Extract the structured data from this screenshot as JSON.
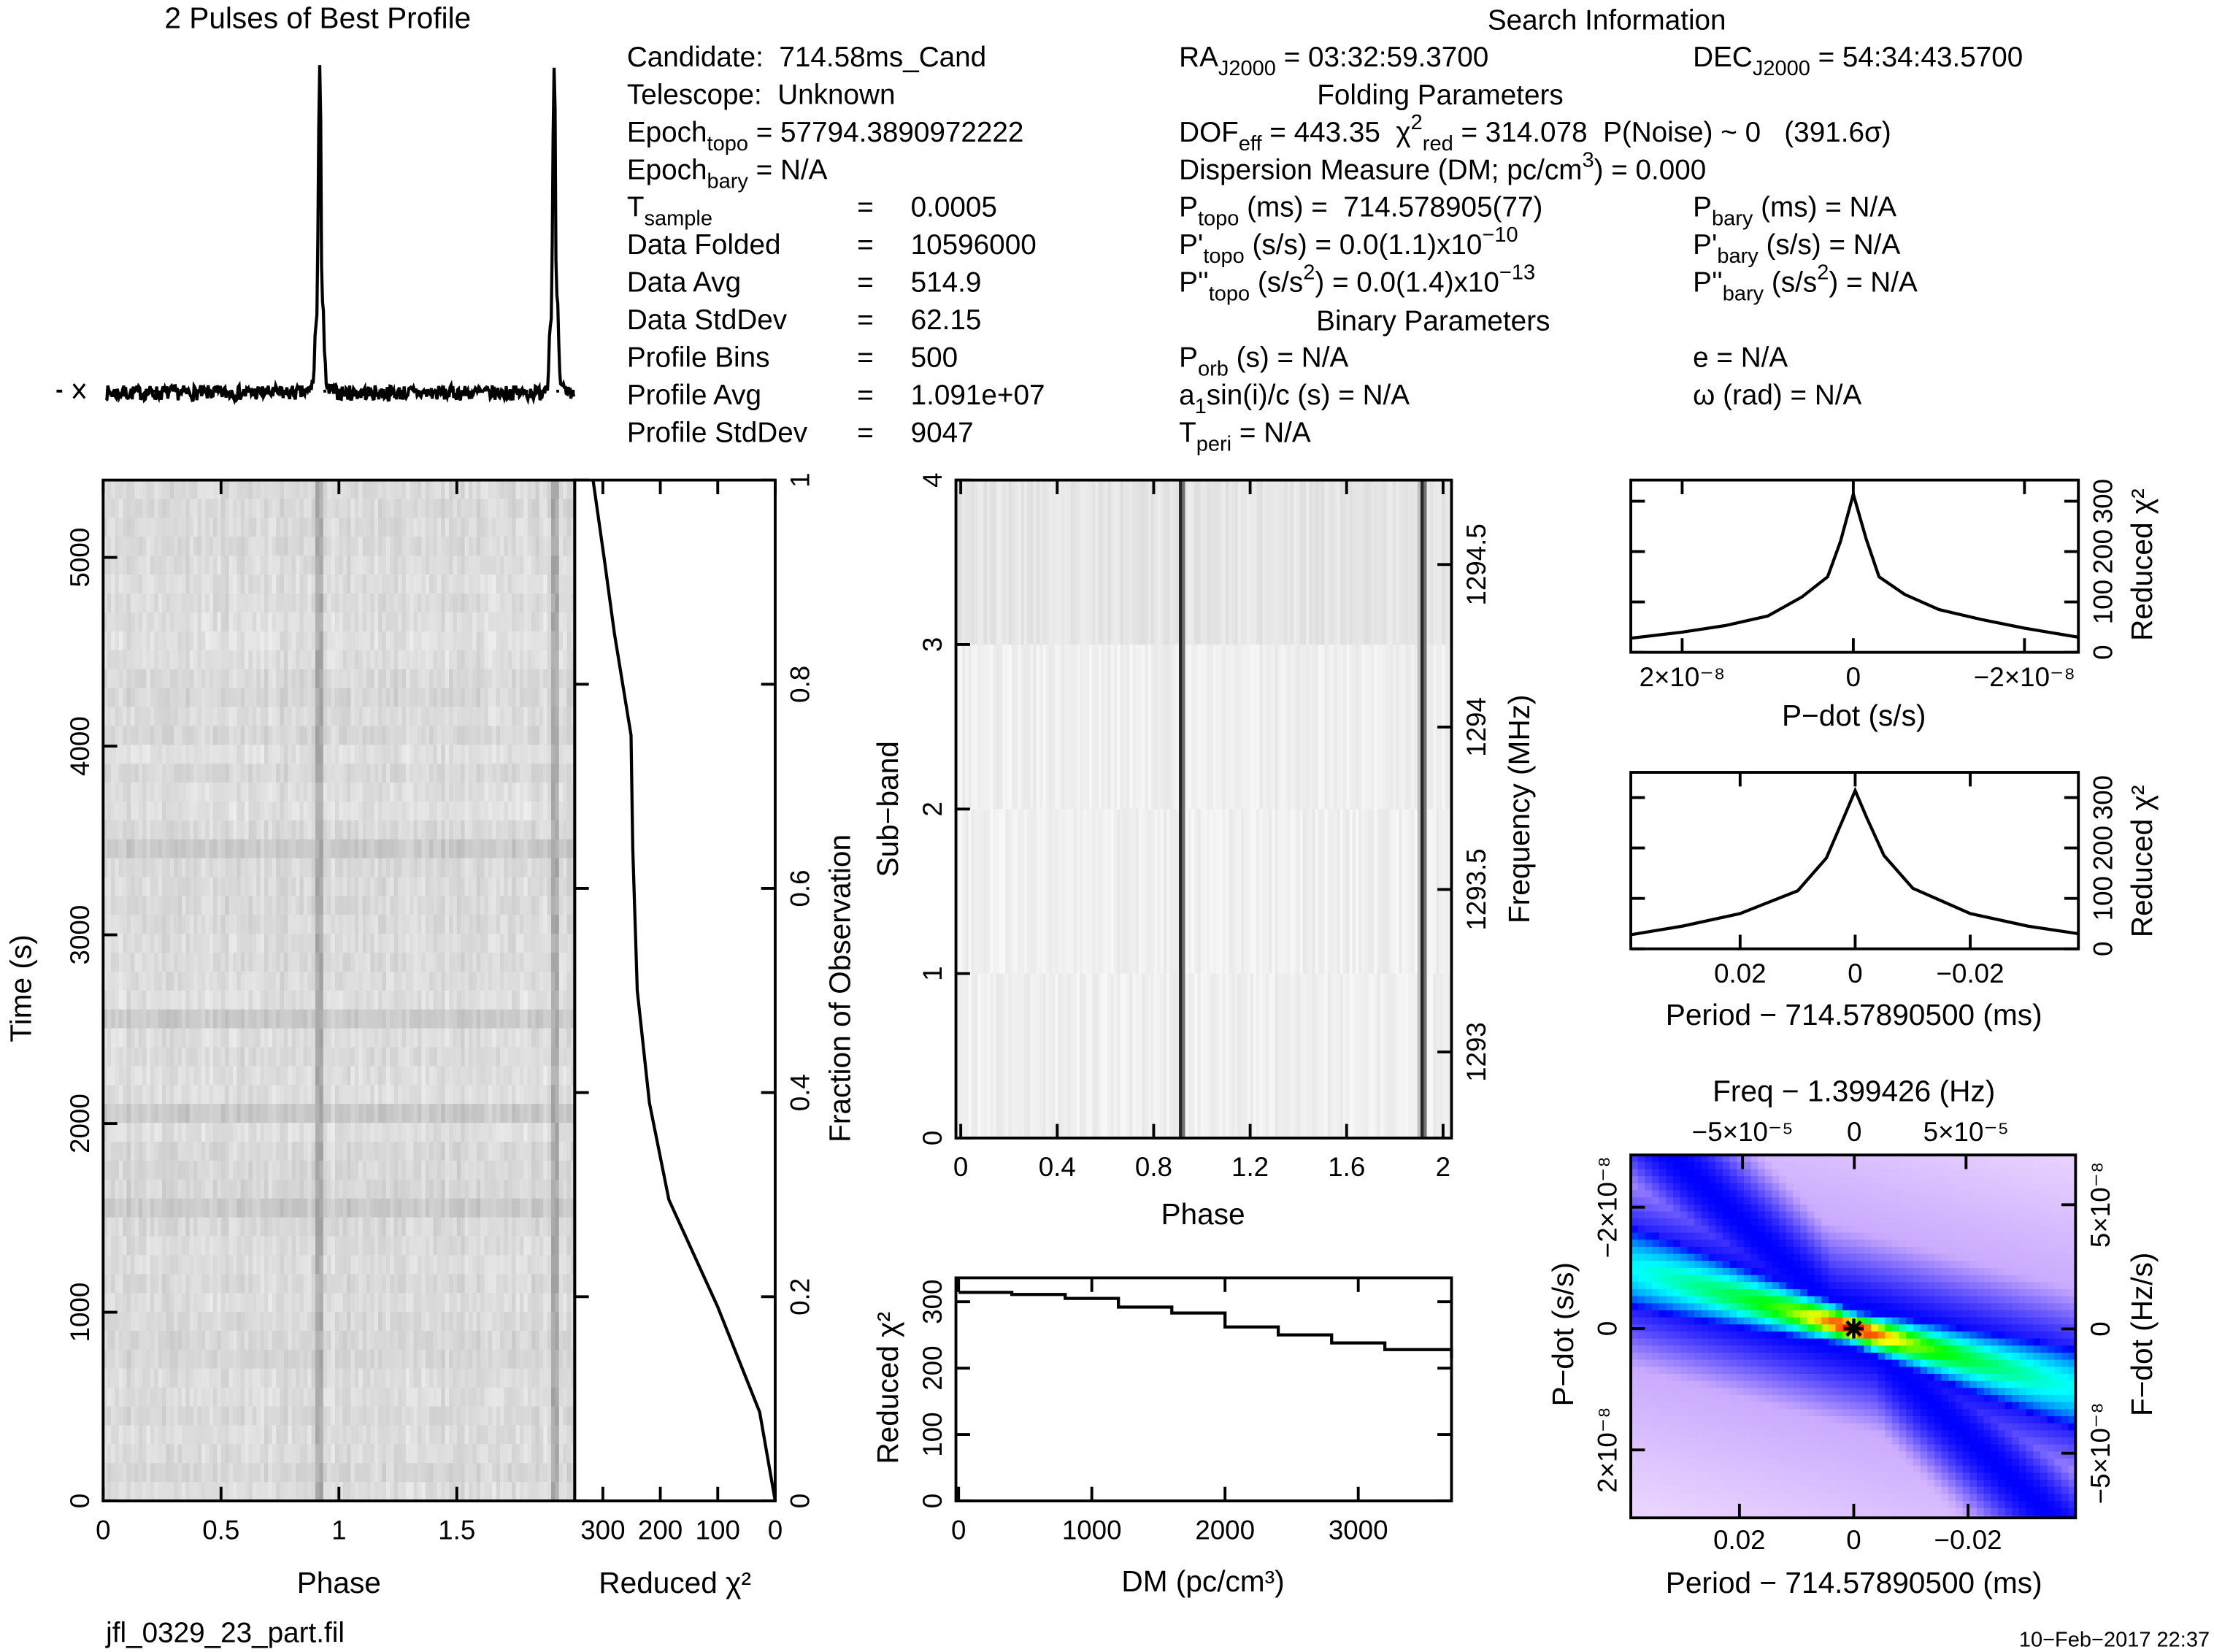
{
  "info": {
    "search_title": "Search Information",
    "folding_title": "Folding Parameters",
    "binary_title": "Binary Parameters",
    "equals": "=",
    "col1_top": [
      [
        [
          "Candidate:  714.58ms_Cand",
          "n"
        ]
      ],
      [
        [
          "Telescope:  Unknown",
          "n"
        ]
      ],
      [
        [
          "Epoch",
          "n"
        ],
        [
          "topo",
          "sub"
        ],
        [
          " = 57794.3890972222",
          "n"
        ]
      ],
      [
        [
          "Epoch",
          "n"
        ],
        [
          "bary",
          "sub"
        ],
        [
          " = N/A",
          "n"
        ]
      ]
    ],
    "col1_stats": [
      {
        "label": [
          [
            "T",
            "n"
          ],
          [
            "sample",
            "sub"
          ]
        ],
        "value": "0.0005"
      },
      {
        "label": [
          [
            "Data Folded",
            "n"
          ]
        ],
        "value": "10596000"
      },
      {
        "label": [
          [
            "Data Avg",
            "n"
          ]
        ],
        "value": "514.9"
      },
      {
        "label": [
          [
            "Data StdDev",
            "n"
          ]
        ],
        "value": "62.15"
      },
      {
        "label": [
          [
            "Profile Bins",
            "n"
          ]
        ],
        "value": "500"
      },
      {
        "label": [
          [
            "Profile Avg",
            "n"
          ]
        ],
        "value": "1.091e+07"
      },
      {
        "label": [
          [
            "Profile StdDev",
            "n"
          ]
        ],
        "value": "9047"
      }
    ],
    "col2": [
      [
        [
          "RA",
          "n"
        ],
        [
          "J2000",
          "sub"
        ],
        [
          " = 03:32:59.3700",
          "n"
        ]
      ],
      [],
      [
        [
          "DOF",
          "n"
        ],
        [
          "eff",
          "sub"
        ],
        [
          " = 443.35  χ",
          "n"
        ],
        [
          "2",
          "sup"
        ],
        [
          "red",
          "sub"
        ],
        [
          " = 314.078  P(Noise) ~ 0   (391.6σ)",
          "n"
        ]
      ],
      [
        [
          "Dispersion Measure (DM; pc/cm",
          "n"
        ],
        [
          "3",
          "sup"
        ],
        [
          ") = 0.000",
          "n"
        ]
      ],
      [
        [
          "P",
          "n"
        ],
        [
          "topo",
          "sub"
        ],
        [
          " (ms) =  714.578905(77)",
          "n"
        ]
      ],
      [
        [
          "P'",
          "n"
        ],
        [
          "topo",
          "sub"
        ],
        [
          " (s/s) = 0.0(1.1)x10",
          "n"
        ],
        [
          "−10",
          "sup"
        ]
      ],
      [
        [
          "P''",
          "n"
        ],
        [
          "topo",
          "sub"
        ],
        [
          " (s/s",
          "n"
        ],
        [
          "2",
          "sup"
        ],
        [
          ") = 0.0(1.4)x10",
          "n"
        ],
        [
          "−13",
          "sup"
        ]
      ],
      [],
      [
        [
          "P",
          "n"
        ],
        [
          "orb",
          "sub"
        ],
        [
          " (s) = N/A",
          "n"
        ]
      ],
      [
        [
          "a",
          "n"
        ],
        [
          "1",
          "sub"
        ],
        [
          "sin(i)/c (s) = N/A",
          "n"
        ]
      ],
      [
        [
          "T",
          "n"
        ],
        [
          "peri",
          "sub"
        ],
        [
          " = N/A",
          "n"
        ]
      ]
    ],
    "col3": [
      [
        [
          "DEC",
          "n"
        ],
        [
          "J2000",
          "sub"
        ],
        [
          " = 54:34:43.5700",
          "n"
        ]
      ],
      [],
      [],
      [],
      [
        [
          "P",
          "n"
        ],
        [
          "bary",
          "sub"
        ],
        [
          " (ms) = N/A",
          "n"
        ]
      ],
      [
        [
          "P'",
          "n"
        ],
        [
          "bary",
          "sub"
        ],
        [
          " (s/s) = N/A",
          "n"
        ]
      ],
      [
        [
          "P''",
          "n"
        ],
        [
          "bary",
          "sub"
        ],
        [
          " (s/s",
          "n"
        ],
        [
          "2",
          "sup"
        ],
        [
          ") = N/A",
          "n"
        ]
      ],
      [],
      [
        [
          "e = N/A",
          "n"
        ]
      ],
      [
        [
          "ω (rad) = N/A",
          "n"
        ]
      ],
      []
    ]
  },
  "footer": {
    "filename": "jfl_0329_23_part.fil",
    "date": "10−Feb−2017 22:37"
  },
  "chart_data": [
    {
      "id": "profile",
      "type": "line",
      "title": "2 Pulses of Best Profile",
      "xlim": [
        0,
        2
      ],
      "pulses": 2,
      "bins_per_pulse": 250,
      "pulse_phase": 0.916,
      "profile_shape": [
        [
          0,
          0.02
        ],
        [
          0.86,
          0.02
        ],
        [
          0.885,
          0.05
        ],
        [
          0.893,
          0.2
        ],
        [
          0.9,
          0.25
        ],
        [
          0.905,
          0.55
        ],
        [
          0.91,
          0.95
        ],
        [
          0.914,
          1.0
        ],
        [
          0.918,
          0.7
        ],
        [
          0.921,
          0.27
        ],
        [
          0.926,
          0.32
        ],
        [
          0.932,
          0.15
        ],
        [
          0.94,
          0.03
        ],
        [
          1,
          0.02
        ]
      ]
    },
    {
      "id": "time_vs_phase",
      "type": "heatmap",
      "colormap": "grayscale",
      "xlabel": "Phase",
      "ylabel": "Time (s)",
      "xlim": [
        0,
        2
      ],
      "ylim": [
        0,
        5410
      ],
      "x_ticks": [
        0,
        0.5,
        1,
        1.5
      ],
      "x_tick_labels": [
        "0",
        "0.5",
        "1",
        "1.5"
      ],
      "y_ticks": [
        0,
        1000,
        2000,
        3000,
        4000,
        5000
      ],
      "y_tick_labels": [
        "0",
        "1000",
        "2000",
        "3000",
        "4000",
        "5000"
      ],
      "pulse_phase": 0.916
    },
    {
      "id": "chi2_vs_time",
      "type": "line",
      "xlabel": "Reduced χ²",
      "ylabel_right": "Fraction of Observation",
      "xlim": [
        349,
        0
      ],
      "ylim": [
        0,
        1
      ],
      "x_ticks": [
        300,
        200,
        100,
        0
      ],
      "x_tick_labels": [
        "300",
        "200",
        "100",
        "0"
      ],
      "y2_ticks": [
        0,
        0.2,
        0.4,
        0.6,
        0.8,
        1
      ],
      "y2_tick_labels": [
        "0",
        "0.2",
        "0.4",
        "0.6",
        "0.8",
        "1"
      ],
      "fraction": [
        0,
        0.087,
        0.19,
        0.295,
        0.39,
        0.5,
        0.64,
        0.75,
        0.85,
        0.92,
        1
      ],
      "reduced_chi2": [
        0,
        27,
        100,
        185,
        219,
        240,
        248,
        251,
        280,
        297,
        317
      ]
    },
    {
      "id": "subbands",
      "type": "heatmap",
      "colormap": "grayscale",
      "xlabel": "Phase",
      "ylabel": "Sub−band",
      "ylabel_right": "Frequency (MHz)",
      "xlim": [
        -0.02,
        2.035
      ],
      "ylim": [
        0,
        4
      ],
      "y2lim": [
        1292.735,
        1294.76
      ],
      "x_ticks": [
        0,
        0.4,
        0.8,
        1.2,
        1.6,
        2
      ],
      "x_tick_labels": [
        "0",
        "0.4",
        "0.8",
        "1.2",
        "1.6",
        "2"
      ],
      "y_ticks": [
        0,
        1,
        2,
        3,
        4
      ],
      "y_tick_labels": [
        "0",
        "1",
        "2",
        "3",
        "4"
      ],
      "y2_ticks": [
        1293,
        1293.5,
        1294,
        1294.5
      ],
      "y2_tick_labels": [
        "1293",
        "1293.5",
        "1294",
        "1294.5"
      ],
      "pulse_phase": 0.916,
      "n_subbands": 4
    },
    {
      "id": "chi2_vs_dm",
      "type": "line",
      "xlabel": "DM (pc/cm³)",
      "ylabel": "Reduced χ²",
      "xlim": [
        -20,
        3700
      ],
      "ylim": [
        0,
        336
      ],
      "x_ticks": [
        0,
        1000,
        2000,
        3000
      ],
      "x_tick_labels": [
        "0",
        "1000",
        "2000",
        "3000"
      ],
      "y_ticks": [
        0,
        100,
        200,
        300
      ],
      "y_tick_labels": [
        "0",
        "100",
        "200",
        "300"
      ],
      "dm": [
        0,
        400,
        800,
        1200,
        1600,
        2000,
        2400,
        2800,
        3200,
        3700
      ],
      "reduced_chi2": [
        314,
        311,
        305,
        292,
        283,
        262,
        250,
        238,
        228,
        215
      ]
    },
    {
      "id": "chi2_vs_pdot",
      "type": "line",
      "xlabel": "P−dot (s/s)",
      "ylabel_right": "Reduced χ²",
      "xlim": [
        2.6e-08,
        -2.63e-08
      ],
      "ylim": [
        0,
        342
      ],
      "x_ticks": [
        2e-08,
        0,
        -2e-08
      ],
      "x_tick_labels": [
        "2×10⁻⁸",
        "0",
        "−2×10⁻⁸"
      ],
      "y2_ticks": [
        0,
        100,
        200,
        300
      ],
      "y2_tick_labels": [
        "0",
        "100",
        "200",
        "300"
      ],
      "pdot": [
        2.6e-08,
        2e-08,
        1.5e-08,
        1e-08,
        6e-09,
        3e-09,
        1.5e-09,
        0,
        -1.5e-09,
        -3e-09,
        -6e-09,
        -1e-08,
        -1.5e-08,
        -2e-08,
        -2.63e-08
      ],
      "reduced_chi2": [
        28,
        40,
        53,
        72,
        110,
        150,
        220,
        314,
        225,
        150,
        115,
        85,
        65,
        48,
        30
      ]
    },
    {
      "id": "chi2_vs_period",
      "type": "line",
      "xlabel": "Period − 714.57890500 (ms)",
      "ylabel_right": "Reduced χ²",
      "xlim": [
        0.039,
        -0.0388
      ],
      "ylim": [
        0,
        350
      ],
      "x_ticks": [
        0.02,
        0,
        -0.02
      ],
      "x_tick_labels": [
        "0.02",
        "0",
        "−0.02"
      ],
      "y2_ticks": [
        0,
        100,
        200,
        300
      ],
      "y2_tick_labels": [
        "0",
        "100",
        "200",
        "300"
      ],
      "period_offset": [
        0.039,
        0.03,
        0.02,
        0.01,
        0.005,
        0.002,
        0,
        -0.002,
        -0.005,
        -0.01,
        -0.02,
        -0.03,
        -0.0388
      ],
      "reduced_chi2": [
        28,
        45,
        70,
        115,
        180,
        260,
        314,
        260,
        185,
        120,
        70,
        45,
        30
      ]
    },
    {
      "id": "p_pdot_plane",
      "type": "heatmap",
      "xlabel": "Period − 714.57890500 (ms)",
      "ylabel": "P−dot (s/s)",
      "top_label": "Freq − 1.399426 (Hz)",
      "ylabel_right": "F−dot (Hz/s)",
      "xlim": [
        0.039,
        -0.0388
      ],
      "ylim": [
        -2.86e-08,
        3.12e-08
      ],
      "x2lim": [
        -0.0001,
        9.9e-05
      ],
      "y2lim": [
        7e-08,
        -7.6e-08
      ],
      "x_ticks": [
        0.02,
        0,
        -0.02
      ],
      "x_tick_labels": [
        "0.02",
        "0",
        "−0.02"
      ],
      "y_ticks": [
        -2e-08,
        0,
        2e-08
      ],
      "y_tick_labels": [
        "−2×10⁻⁸",
        "0",
        "2×10⁻⁸"
      ],
      "x2_ticks": [
        -5e-05,
        0,
        5e-05
      ],
      "x2_tick_labels": [
        "−5×10⁻⁵",
        "0",
        "5×10⁻⁵"
      ],
      "y2_ticks": [
        5e-08,
        0,
        -5e-08
      ],
      "y2_tick_labels": [
        "5×10⁻⁸",
        "0",
        "−5×10⁻⁸"
      ],
      "best_fit": [
        0,
        0
      ],
      "colorscale": [
        "#fff0ff",
        "#c8a8ff",
        "#0000ff",
        "#0090ff",
        "#00ffff",
        "#00ff00",
        "#ffff00",
        "#ff0000"
      ]
    }
  ]
}
